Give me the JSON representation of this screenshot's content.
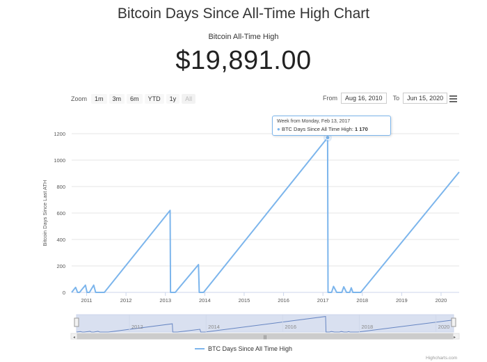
{
  "page": {
    "title": "Bitcoin Days Since All-Time High Chart",
    "subtitle": "Bitcoin All-Time High",
    "ath_price": "$19,891.00"
  },
  "toolbar": {
    "zoom_label": "Zoom",
    "zoom_buttons": [
      "1m",
      "3m",
      "6m",
      "YTD",
      "1y",
      "All"
    ],
    "from_label": "From",
    "from_value": "Aug 16, 2010",
    "to_label": "To",
    "to_value": "Jun 15, 2020",
    "menu_icon": "hamburger-menu-icon"
  },
  "tooltip": {
    "date": "Week from Monday, Feb 13, 2017",
    "series": "BTC Days Since All Time High",
    "value": "1 170"
  },
  "legend": {
    "label": "BTC Days Since All Time High"
  },
  "credit": "Highcharts.com",
  "colors": {
    "series": "#7cb5ec",
    "grid": "#e6e6e6",
    "navigator_fill": "rgba(102,133,194,0.25)"
  },
  "chart_data": {
    "type": "line",
    "title": "Bitcoin Days Since All-Time High Chart",
    "ylabel": "Bitcoin Days Since Last ATH",
    "xlabel": "",
    "ylim": [
      0,
      1200
    ],
    "y_ticks": [
      0,
      200,
      400,
      600,
      800,
      1000,
      1200
    ],
    "x_range": [
      2010.62,
      2020.46
    ],
    "x_ticks": [
      "2011",
      "2012",
      "2013",
      "2014",
      "2015",
      "2016",
      "2017",
      "2018",
      "2019",
      "2020"
    ],
    "navigator_ticks": [
      "2012",
      "2014",
      "2016",
      "2018",
      "2020"
    ],
    "grid": true,
    "legend_position": "bottom-center",
    "series": [
      {
        "name": "BTC Days Since All Time High",
        "x": [
          2010.62,
          2010.72,
          2010.77,
          2010.82,
          2010.97,
          2011.01,
          2011.07,
          2011.18,
          2011.23,
          2011.45,
          2013.12,
          2013.13,
          2013.25,
          2013.84,
          2013.86,
          2013.97,
          2017.12,
          2017.13,
          2017.22,
          2017.27,
          2017.35,
          2017.48,
          2017.53,
          2017.6,
          2017.68,
          2017.72,
          2017.76,
          2017.92,
          2017.96,
          2020.46
        ],
        "y": [
          0,
          38,
          0,
          0,
          55,
          0,
          0,
          55,
          0,
          0,
          620,
          0,
          0,
          210,
          0,
          0,
          1170,
          0,
          0,
          45,
          0,
          0,
          42,
          0,
          0,
          35,
          0,
          0,
          0,
          910
        ]
      }
    ]
  }
}
